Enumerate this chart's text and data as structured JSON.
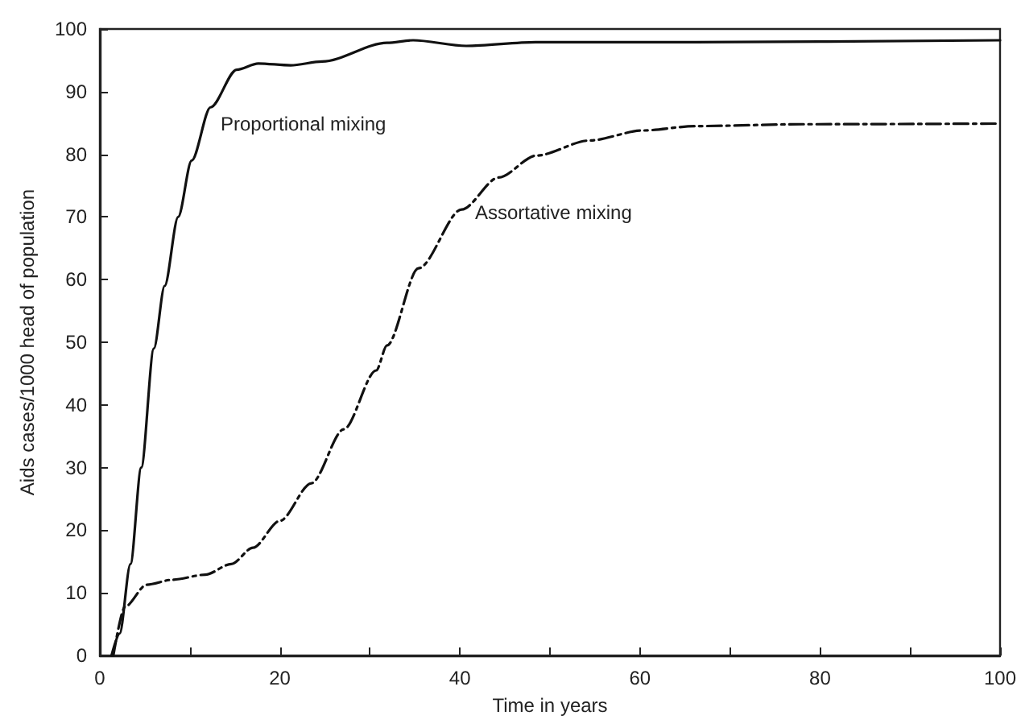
{
  "chart_data": {
    "type": "line",
    "xlabel": "Time in years",
    "ylabel": "Aids cases/1000 head of population",
    "xlim": [
      0,
      100
    ],
    "ylim": [
      0,
      100
    ],
    "xticks": [
      0,
      {
        "value": 10,
        "label": null
      },
      20,
      {
        "value": 30,
        "label": null
      },
      40,
      {
        "value": 50,
        "label": null
      },
      60,
      {
        "value": 70,
        "label": null
      },
      80,
      {
        "value": 90,
        "label": null
      },
      100
    ],
    "yticks": [
      0,
      10,
      20,
      30,
      40,
      50,
      60,
      70,
      80,
      90,
      100
    ],
    "grid": false,
    "marker": "none",
    "series": [
      {
        "name": "Proportional mixing",
        "color": "#111111",
        "line_style": "solid",
        "x": [
          1.3,
          2.2,
          3.4,
          4.6,
          6.0,
          7.2,
          8.7,
          10.2,
          12.3,
          15.2,
          17.6,
          21.2,
          24.7,
          31.9,
          34.8,
          40.7,
          48.4,
          66.2,
          100
        ],
        "values": [
          0,
          3.5,
          14.6,
          30,
          49,
          59,
          70,
          79,
          87.5,
          93.5,
          94.5,
          94.2,
          94.8,
          97.8,
          98.2,
          97.3,
          97.9,
          97.9,
          98.2
        ]
      },
      {
        "name": "Assortative mixing",
        "color": "#111111",
        "line_style": "dashdot",
        "x": [
          1.5,
          2.8,
          5.2,
          8.1,
          11.7,
          14.6,
          17.0,
          20,
          23.5,
          27.1,
          30.7,
          31.9,
          35.4,
          40.2,
          44.3,
          48.5,
          54.4,
          60.3,
          66.2,
          78.1,
          100
        ],
        "values": [
          0,
          7.8,
          11.3,
          12.1,
          12.9,
          14.6,
          17.2,
          21.5,
          27.5,
          36.1,
          45.5,
          49.5,
          61.8,
          71.2,
          76.3,
          79.8,
          82.2,
          83.8,
          84.5,
          84.8,
          84.9
        ]
      }
    ]
  }
}
